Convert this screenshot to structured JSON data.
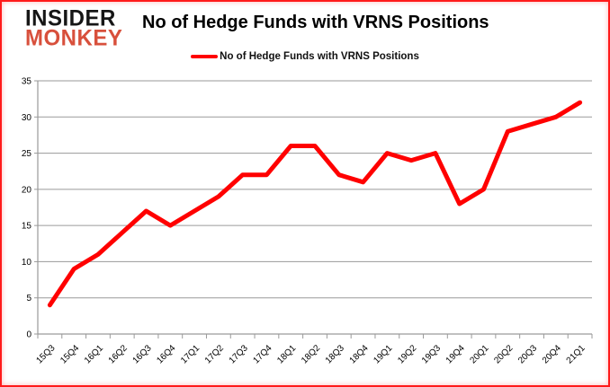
{
  "logo": {
    "line1": "INSIDER",
    "line2": "MONKEY"
  },
  "header": {
    "title": "No of Hedge Funds with VRNS Positions"
  },
  "legend": {
    "label": "No of Hedge Funds with VRNS Positions",
    "color": "#ff0000"
  },
  "colors": {
    "series_line": "#ff0000",
    "grid": "#9a9a9a",
    "axis": "#9a9a9a",
    "tick_text": "#000000",
    "logo_black": "#161616",
    "logo_red": "#d8503c",
    "frame_border": "#ff1a1a"
  },
  "chart_data": {
    "type": "line",
    "title": "No of Hedge Funds with VRNS Positions",
    "categories": [
      "15Q3",
      "15Q4",
      "16Q1",
      "16Q2",
      "16Q3",
      "16Q4",
      "17Q1",
      "17Q2",
      "17Q3",
      "17Q4",
      "18Q1",
      "18Q2",
      "18Q3",
      "18Q4",
      "19Q1",
      "19Q2",
      "19Q3",
      "19Q4",
      "20Q1",
      "20Q2",
      "20Q3",
      "20Q4",
      "21Q1"
    ],
    "series": [
      {
        "name": "No of Hedge Funds with VRNS Positions",
        "color": "#ff0000",
        "values": [
          4,
          9,
          11,
          14,
          17,
          15,
          17,
          19,
          22,
          22,
          26,
          26,
          22,
          21,
          25,
          24,
          25,
          18,
          20,
          28,
          29,
          30,
          32
        ]
      }
    ],
    "xlabel": "",
    "ylabel": "",
    "ylim": [
      0,
      35
    ],
    "yticks": [
      0,
      5,
      10,
      15,
      20,
      25,
      30,
      35
    ],
    "grid": "horizontal",
    "legend_position": "top"
  }
}
